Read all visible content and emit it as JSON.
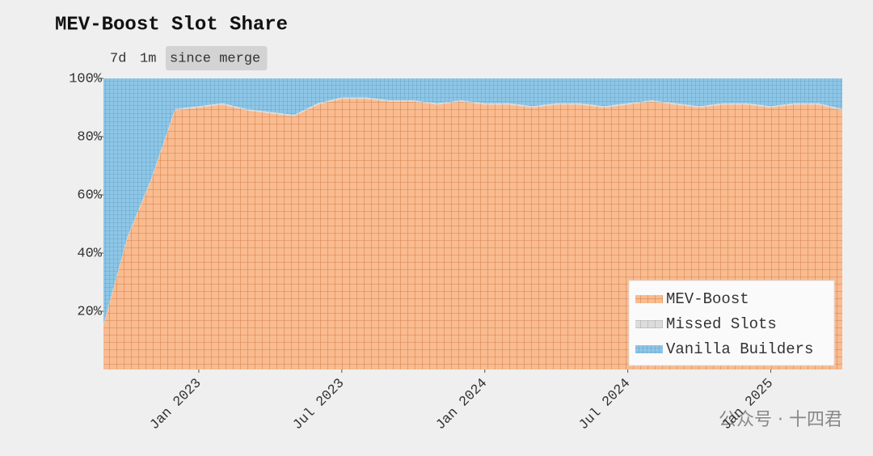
{
  "chart_data": {
    "type": "stacked-area",
    "title": "MEV-Boost Slot Share",
    "range_buttons": [
      "7d",
      "1m",
      "since merge"
    ],
    "selected_range": 2,
    "x": [
      "2022-09",
      "2022-10",
      "2022-11",
      "2022-12",
      "2023-01",
      "2023-02",
      "2023-03",
      "2023-04",
      "2023-05",
      "2023-06",
      "2023-07",
      "2023-08",
      "2023-09",
      "2023-10",
      "2023-11",
      "2023-12",
      "2024-01",
      "2024-02",
      "2024-03",
      "2024-04",
      "2024-05",
      "2024-06",
      "2024-07",
      "2024-08",
      "2024-09",
      "2024-10",
      "2024-11",
      "2024-12",
      "2025-01",
      "2025-02",
      "2025-03",
      "2025-04"
    ],
    "xlim": [
      "2022-09",
      "2025-04"
    ],
    "xticks": [
      {
        "value": "2023-01",
        "label": "Jan 2023"
      },
      {
        "value": "2023-07",
        "label": "Jul 2023"
      },
      {
        "value": "2024-01",
        "label": "Jan 2024"
      },
      {
        "value": "2024-07",
        "label": "Jul 2024"
      },
      {
        "value": "2025-01",
        "label": "Jan 2025"
      }
    ],
    "ylim": [
      0,
      100
    ],
    "yticks": [
      {
        "value": 20,
        "label": "20%"
      },
      {
        "value": 40,
        "label": "40%"
      },
      {
        "value": 60,
        "label": "60%"
      },
      {
        "value": 80,
        "label": "80%"
      },
      {
        "value": 100,
        "label": "100%"
      }
    ],
    "legend": "lower right",
    "series": [
      {
        "name": "MEV-Boost",
        "color": "#f9bb8f",
        "values": [
          15,
          45,
          65,
          89,
          90,
          91,
          89,
          88,
          87,
          91,
          93,
          93,
          92,
          92,
          91,
          92,
          91,
          91,
          90,
          91,
          91,
          90,
          91,
          92,
          91,
          90,
          91,
          91,
          90,
          91,
          91,
          89
        ]
      },
      {
        "name": "Missed Slots",
        "color": "#dcdcdc",
        "values": [
          0.5,
          0.5,
          0.5,
          0.5,
          0.5,
          0.5,
          0.5,
          0.5,
          0.5,
          0.5,
          0.5,
          0.5,
          0.5,
          0.5,
          0.5,
          0.5,
          0.5,
          0.5,
          0.5,
          0.5,
          0.5,
          0.5,
          0.5,
          0.5,
          0.5,
          0.5,
          0.5,
          0.5,
          0.5,
          0.5,
          0.5,
          0.5
        ]
      },
      {
        "name": "Vanilla Builders",
        "color": "#8ec6e6",
        "values": [
          84.5,
          54.5,
          34.5,
          10.5,
          9.5,
          8.5,
          10.5,
          11.5,
          12.5,
          8.5,
          6.5,
          6.5,
          7.5,
          7.5,
          8.5,
          7.5,
          8.5,
          8.5,
          9.5,
          8.5,
          8.5,
          9.5,
          8.5,
          7.5,
          8.5,
          9.5,
          8.5,
          8.5,
          9.5,
          8.5,
          8.5,
          10.5
        ]
      }
    ]
  },
  "watermark": "公众号 · 十四君"
}
